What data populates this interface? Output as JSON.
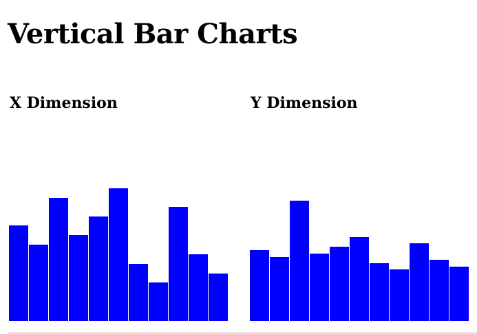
{
  "page": {
    "title": "Vertical Bar Charts"
  },
  "chart_data": [
    {
      "type": "bar",
      "title": "X Dimension",
      "values": [
        139,
        111,
        179,
        125,
        152,
        193,
        83,
        56,
        166,
        97,
        69
      ],
      "bar_color": "#0000ff"
    },
    {
      "type": "bar",
      "title": "Y Dimension",
      "values": [
        103,
        93,
        175,
        98,
        108,
        122,
        84,
        75,
        113,
        89,
        79
      ],
      "bar_color": "#0000ff"
    }
  ]
}
